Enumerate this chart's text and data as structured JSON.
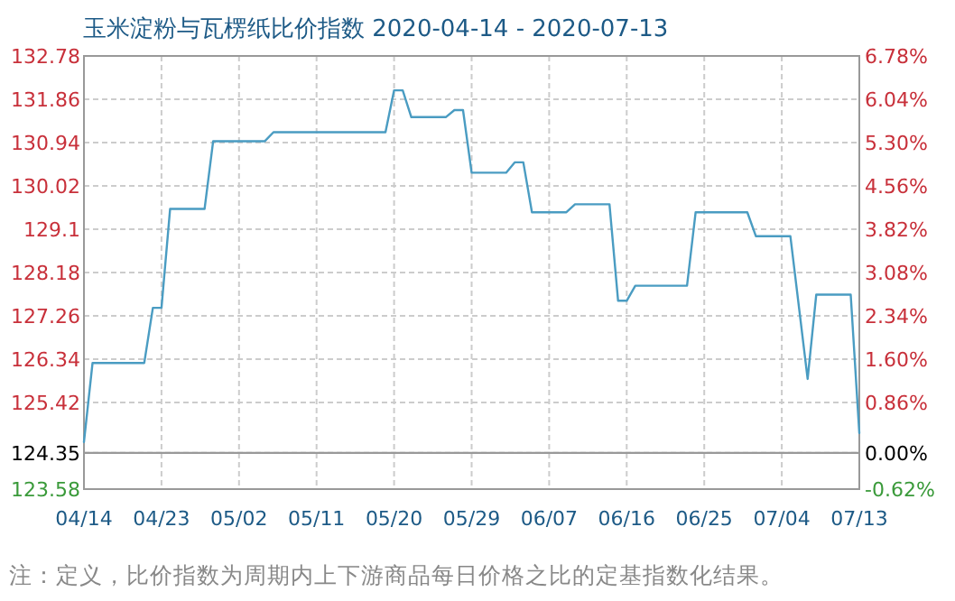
{
  "chart_data": {
    "type": "line",
    "title": "玉米淀粉与瓦楞纸比价指数 2020-04-14 - 2020-07-13",
    "x": [
      "2020-04-14",
      "2020-04-15",
      "2020-04-21",
      "2020-04-22",
      "2020-04-23",
      "2020-04-24",
      "2020-04-28",
      "2020-04-29",
      "2020-05-05",
      "2020-05-06",
      "2020-05-19",
      "2020-05-20",
      "2020-05-21",
      "2020-05-22",
      "2020-05-26",
      "2020-05-27",
      "2020-05-28",
      "2020-05-29",
      "2020-06-02",
      "2020-06-03",
      "2020-06-04",
      "2020-06-05",
      "2020-06-09",
      "2020-06-10",
      "2020-06-14",
      "2020-06-15",
      "2020-06-16",
      "2020-06-17",
      "2020-06-23",
      "2020-06-24",
      "2020-06-30",
      "2020-07-01",
      "2020-07-05",
      "2020-07-07",
      "2020-07-08",
      "2020-07-12",
      "2020-07-13"
    ],
    "series": [
      {
        "color": "#4a9cc2",
        "values": [
          124.58,
          126.26,
          126.26,
          127.43,
          127.43,
          129.53,
          129.53,
          130.97,
          130.97,
          131.16,
          131.16,
          132.05,
          132.05,
          131.48,
          131.48,
          131.63,
          131.63,
          130.3,
          130.3,
          130.52,
          130.52,
          129.46,
          129.46,
          129.63,
          129.63,
          127.58,
          127.58,
          127.9,
          127.9,
          129.46,
          129.46,
          128.95,
          128.95,
          125.92,
          127.71,
          127.71,
          124.77
        ]
      }
    ],
    "xlim": [
      "2020-04-14",
      "2020-07-13"
    ],
    "xticks": [
      {
        "value": "2020-04-14",
        "label": "04/14"
      },
      {
        "value": "2020-04-23",
        "label": "04/23"
      },
      {
        "value": "2020-05-02",
        "label": "05/02"
      },
      {
        "value": "2020-05-11",
        "label": "05/11"
      },
      {
        "value": "2020-05-20",
        "label": "05/20"
      },
      {
        "value": "2020-05-29",
        "label": "05/29"
      },
      {
        "value": "2020-06-07",
        "label": "06/07"
      },
      {
        "value": "2020-06-16",
        "label": "06/16"
      },
      {
        "value": "2020-06-25",
        "label": "06/25"
      },
      {
        "value": "2020-07-04",
        "label": "07/04"
      },
      {
        "value": "2020-07-13",
        "label": "07/13"
      }
    ],
    "ylim": [
      123.58,
      132.78
    ],
    "yticks": [
      123.58,
      124.35,
      125.42,
      126.34,
      127.26,
      128.18,
      129.1,
      130.02,
      130.94,
      131.86,
      132.78
    ],
    "y2lim": [
      -0.62,
      6.78
    ],
    "y2ticks": [
      {
        "value": -0.62,
        "label": "-0.62%"
      },
      {
        "value": 0,
        "label": "0.00%"
      },
      {
        "value": 0.86,
        "label": "0.86%"
      },
      {
        "value": 1.6,
        "label": "1.60%"
      },
      {
        "value": 2.34,
        "label": "2.34%"
      },
      {
        "value": 3.08,
        "label": "3.08%"
      },
      {
        "value": 3.82,
        "label": "3.82%"
      },
      {
        "value": 4.56,
        "label": "4.56%"
      },
      {
        "value": 5.3,
        "label": "5.30%"
      },
      {
        "value": 6.04,
        "label": "6.04%"
      },
      {
        "value": 6.78,
        "label": "6.78%"
      }
    ],
    "ref_lines": [
      {
        "axis": "y",
        "value": 124.35,
        "color": "#999999"
      }
    ],
    "grid": true,
    "annotations": [
      "注：定义，比价指数为周期内上下游商品每日价格之比的定基指数化结果。"
    ]
  }
}
